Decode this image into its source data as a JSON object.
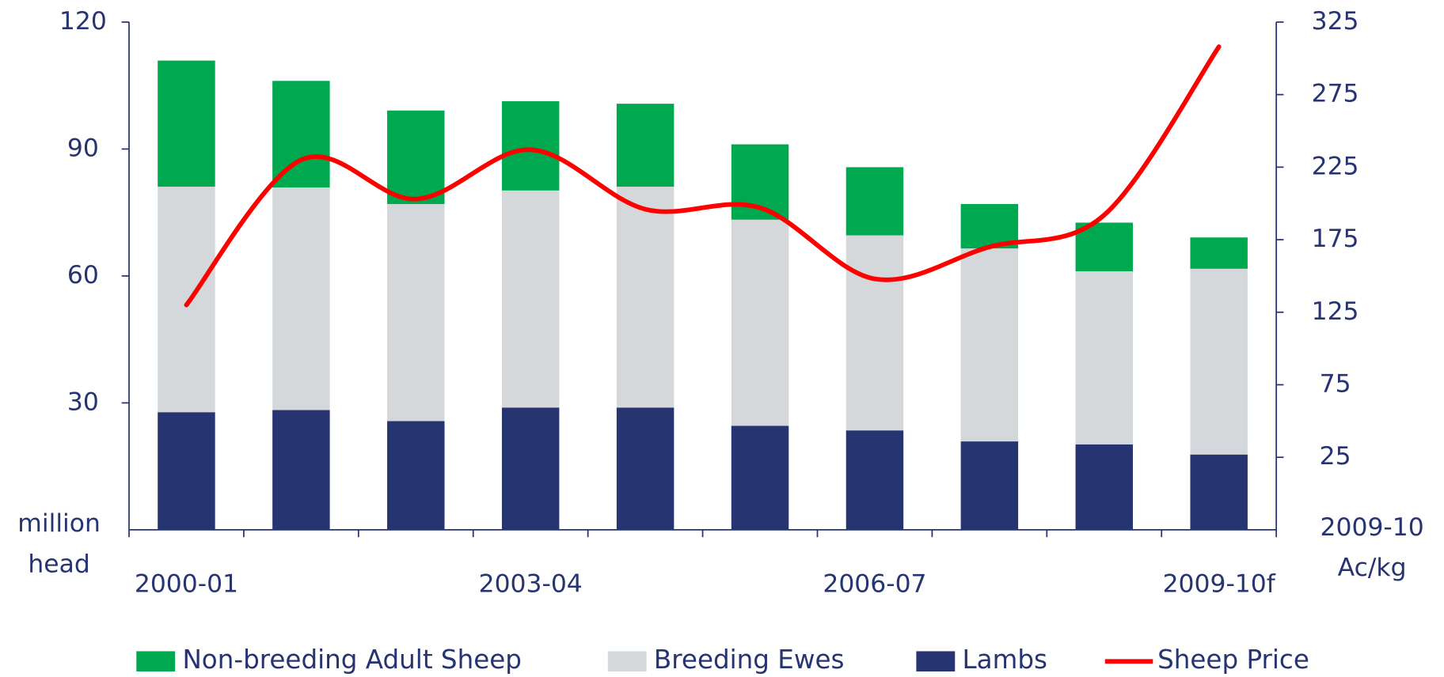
{
  "chart_data": {
    "type": "bar",
    "stacked": true,
    "categories": [
      "2000-01",
      null,
      null,
      "2003-04",
      null,
      null,
      "2006-07",
      null,
      null,
      "2009-10f"
    ],
    "series": [
      {
        "name": "Lambs",
        "color": "#263472",
        "values": [
          27.8,
          28.3,
          25.7,
          28.9,
          28.9,
          24.6,
          23.5,
          20.9,
          20.2,
          17.8
        ]
      },
      {
        "name": "Breeding Ewes",
        "color": "#d5d8da",
        "values": [
          53.3,
          52.6,
          51.3,
          51.3,
          52.2,
          48.7,
          46.1,
          45.6,
          40.9,
          43.9
        ]
      },
      {
        "name": "Non-breeding Adult Sheep",
        "color": "#00a84f",
        "values": [
          29.8,
          25.2,
          22.1,
          21.1,
          19.6,
          17.8,
          16.1,
          10.5,
          11.5,
          7.4
        ]
      },
      {
        "name": "Sheep Price",
        "color": "#ff0000",
        "type": "line",
        "axis": "y2",
        "values": [
          130,
          230,
          203,
          237,
          196,
          197,
          148,
          170,
          192,
          308
        ]
      }
    ],
    "legend_order": [
      2,
      1,
      0,
      3
    ],
    "ylim": [
      0,
      120
    ],
    "yticks": [
      30,
      60,
      90,
      120
    ],
    "y2lim": [
      -25,
      325
    ],
    "y2ticks": [
      25,
      75,
      125,
      175,
      225,
      275,
      325
    ],
    "y_label": "million head",
    "y2_label": "2009-10 Ac/kg"
  }
}
